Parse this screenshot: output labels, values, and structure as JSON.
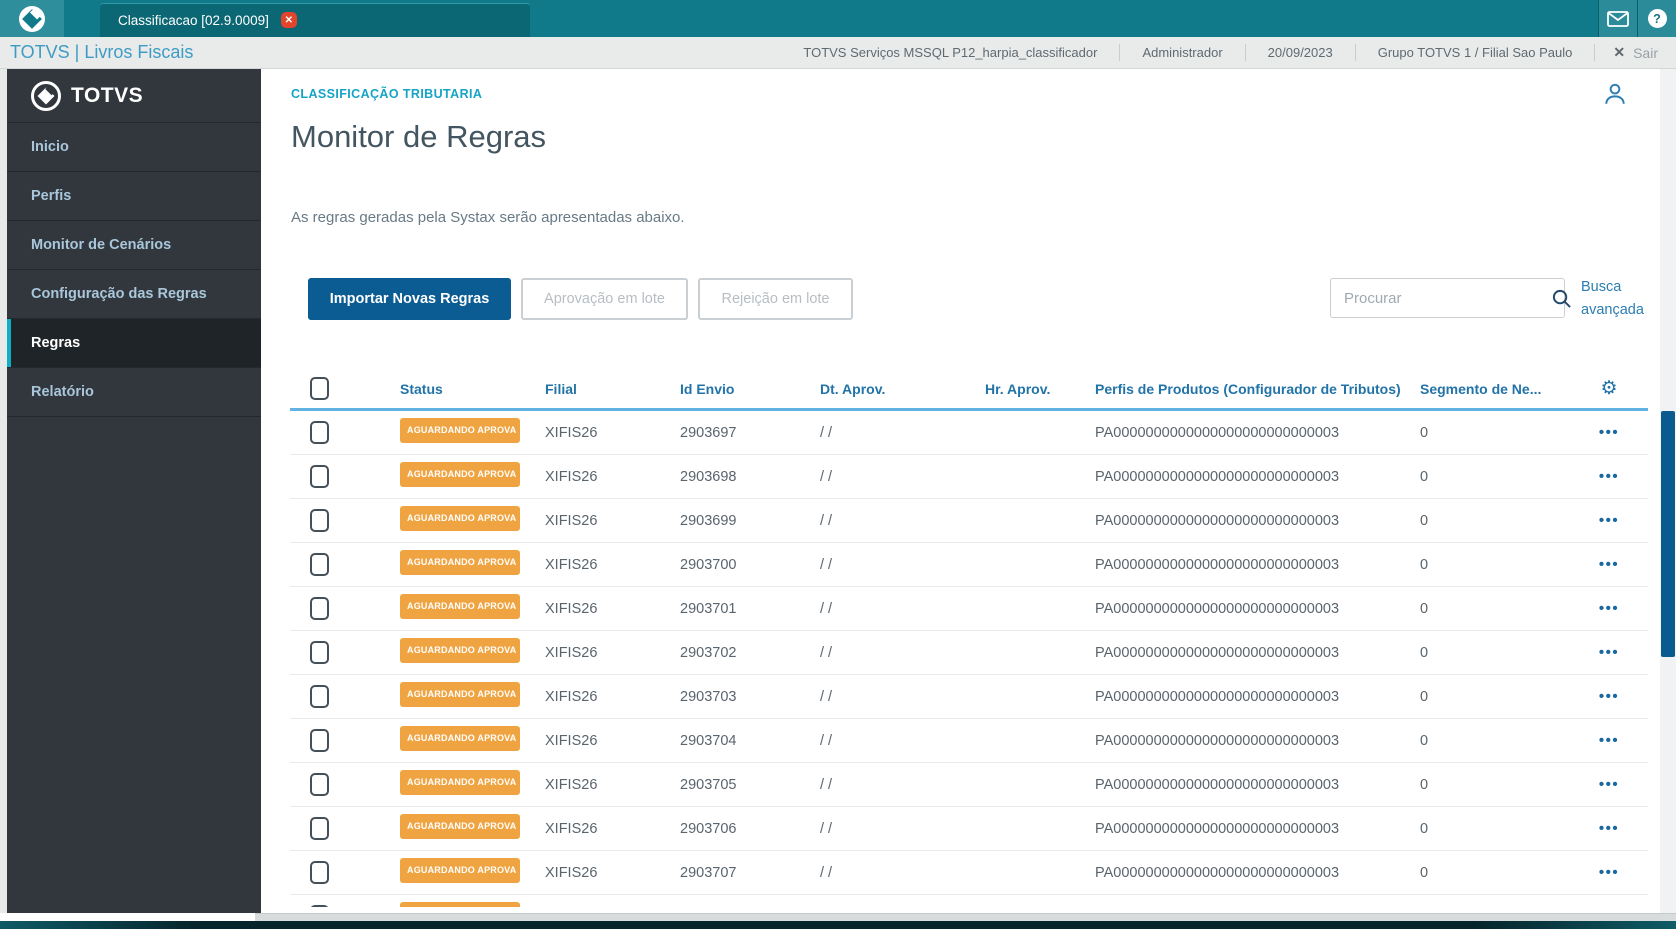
{
  "window": {
    "tab_title": "Classificacao [02.9.0009]",
    "close_glyph": "✕",
    "brand": "TOTVS | Livros Fiscais",
    "env_info": "TOTVS Serviços MSSQL P12_harpia_classificador",
    "user": "Administrador",
    "date": "20/09/2023",
    "org": "Grupo TOTVS 1 / Filial Sao Paulo",
    "logout_x": "✕",
    "logout_label": "Sair",
    "help_glyph": "?"
  },
  "sidebar": {
    "logo_text": "TOTVS",
    "items": [
      {
        "label": "Inicio",
        "active": false
      },
      {
        "label": "Perfis",
        "active": false
      },
      {
        "label": "Monitor de Cenários",
        "active": false
      },
      {
        "label": "Configuração das Regras",
        "active": false
      },
      {
        "label": "Regras",
        "active": true
      },
      {
        "label": "Relatório",
        "active": false
      }
    ]
  },
  "main": {
    "breadcrumb": "CLASSIFICAÇÃO TRIBUTARIA",
    "title": "Monitor de Regras",
    "description": "As regras geradas pela Systax serão apresentadas abaixo.",
    "buttons": {
      "import_label": "Importar Novas Regras",
      "approve_label": "Aprovação em lote",
      "reject_label": "Rejeição em lote"
    },
    "search": {
      "placeholder": "Procurar",
      "value": ""
    },
    "advanced_search": {
      "line1": "Busca",
      "line2": "avançada"
    }
  },
  "table": {
    "columns": [
      "Status",
      "Filial",
      "Id Envio",
      "Dt. Aprov.",
      "Hr. Aprov.",
      "Perfis de Produtos (Configurador de Tributos)",
      "Segmento de Ne..."
    ],
    "gear_glyph": "⚙",
    "more_label": "•••",
    "rows": [
      {
        "status": "AGUARDANDO APROVA",
        "filial": "XIFIS26",
        "id_envio": "2903697",
        "dt_aprov": "/ /",
        "hr_aprov": "",
        "perfil": "PA0000000000000000000000000003",
        "segmento": "0"
      },
      {
        "status": "AGUARDANDO APROVA",
        "filial": "XIFIS26",
        "id_envio": "2903698",
        "dt_aprov": "/ /",
        "hr_aprov": "",
        "perfil": "PA0000000000000000000000000003",
        "segmento": "0"
      },
      {
        "status": "AGUARDANDO APROVA",
        "filial": "XIFIS26",
        "id_envio": "2903699",
        "dt_aprov": "/ /",
        "hr_aprov": "",
        "perfil": "PA0000000000000000000000000003",
        "segmento": "0"
      },
      {
        "status": "AGUARDANDO APROVA",
        "filial": "XIFIS26",
        "id_envio": "2903700",
        "dt_aprov": "/ /",
        "hr_aprov": "",
        "perfil": "PA0000000000000000000000000003",
        "segmento": "0"
      },
      {
        "status": "AGUARDANDO APROVA",
        "filial": "XIFIS26",
        "id_envio": "2903701",
        "dt_aprov": "/ /",
        "hr_aprov": "",
        "perfil": "PA0000000000000000000000000003",
        "segmento": "0"
      },
      {
        "status": "AGUARDANDO APROVA",
        "filial": "XIFIS26",
        "id_envio": "2903702",
        "dt_aprov": "/ /",
        "hr_aprov": "",
        "perfil": "PA0000000000000000000000000003",
        "segmento": "0"
      },
      {
        "status": "AGUARDANDO APROVA",
        "filial": "XIFIS26",
        "id_envio": "2903703",
        "dt_aprov": "/ /",
        "hr_aprov": "",
        "perfil": "PA0000000000000000000000000003",
        "segmento": "0"
      },
      {
        "status": "AGUARDANDO APROVA",
        "filial": "XIFIS26",
        "id_envio": "2903704",
        "dt_aprov": "/ /",
        "hr_aprov": "",
        "perfil": "PA0000000000000000000000000003",
        "segmento": "0"
      },
      {
        "status": "AGUARDANDO APROVA",
        "filial": "XIFIS26",
        "id_envio": "2903705",
        "dt_aprov": "/ /",
        "hr_aprov": "",
        "perfil": "PA0000000000000000000000000003",
        "segmento": "0"
      },
      {
        "status": "AGUARDANDO APROVA",
        "filial": "XIFIS26",
        "id_envio": "2903706",
        "dt_aprov": "/ /",
        "hr_aprov": "",
        "perfil": "PA0000000000000000000000000003",
        "segmento": "0"
      },
      {
        "status": "AGUARDANDO APROVA",
        "filial": "XIFIS26",
        "id_envio": "2903707",
        "dt_aprov": "/ /",
        "hr_aprov": "",
        "perfil": "PA0000000000000000000000000003",
        "segmento": "0"
      }
    ]
  },
  "colors": {
    "topbar_teal": "#10798a",
    "accent_cyan": "#0faec2",
    "primary_blue": "#0b5c92",
    "header_blue": "#2273a8",
    "badge_orange": "#f0a441",
    "close_red": "#e2442c"
  }
}
